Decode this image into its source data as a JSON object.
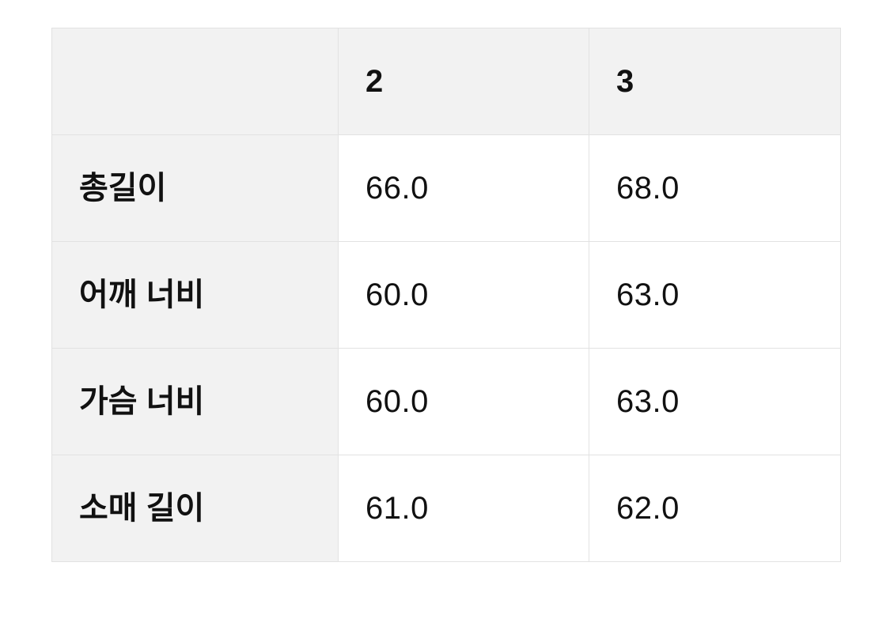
{
  "size_chart": {
    "columns": [
      "",
      "2",
      "3"
    ],
    "rows": [
      {
        "label": "총길이",
        "values": [
          "66.0",
          "68.0"
        ]
      },
      {
        "label": "어깨 너비",
        "values": [
          "60.0",
          "63.0"
        ]
      },
      {
        "label": "가슴 너비",
        "values": [
          "60.0",
          "63.0"
        ]
      },
      {
        "label": "소매 길이",
        "values": [
          "61.0",
          "62.0"
        ]
      }
    ],
    "colors": {
      "header_bg": "#f2f2f2",
      "label_bg": "#f2f2f2",
      "cell_bg": "#ffffff",
      "border": "#e2e2e2",
      "text": "#111111"
    }
  }
}
